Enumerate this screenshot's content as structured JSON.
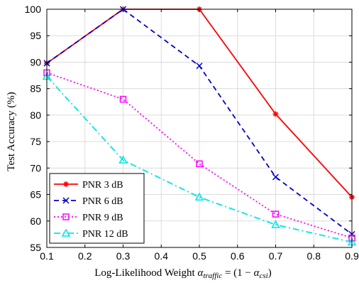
{
  "chart_data": {
    "type": "line",
    "xlabel_main": "Log-Likelihood Weight ",
    "xlabel_var": "α",
    "xlabel_sub1": "traffic",
    "xlabel_mid": " = (1 − ",
    "xlabel_var2": "α",
    "xlabel_sub2": "csi",
    "xlabel_end": ")",
    "ylabel": "Test Accuracy (%)",
    "xlim": [
      0.1,
      0.9
    ],
    "ylim": [
      55,
      100
    ],
    "xticks": [
      "0.1",
      "0.2",
      "0.3",
      "0.4",
      "0.5",
      "0.6",
      "0.7",
      "0.8",
      "0.9"
    ],
    "yticks": [
      "55",
      "60",
      "65",
      "70",
      "75",
      "80",
      "85",
      "90",
      "95",
      "100"
    ],
    "x": [
      0.1,
      0.3,
      0.5,
      0.7,
      0.9
    ],
    "legend_position": "bottom-left",
    "grid": true,
    "series": [
      {
        "name": "PNR 3 dB",
        "values": [
          89.8,
          100,
          100,
          80.2,
          64.5
        ],
        "color": "#ff0000",
        "dash": "",
        "marker": "star"
      },
      {
        "name": "PNR 6 dB",
        "values": [
          89.8,
          100,
          89.3,
          68.3,
          57.5
        ],
        "color": "#0000cc",
        "dash": "7,5",
        "marker": "x"
      },
      {
        "name": "PNR 9 dB",
        "values": [
          88.0,
          83.0,
          70.8,
          61.3,
          56.8
        ],
        "color": "#ff00ff",
        "dash": "2,3",
        "marker": "square"
      },
      {
        "name": "PNR 12 dB",
        "values": [
          87.3,
          71.5,
          64.5,
          59.3,
          56.0
        ],
        "color": "#00e5e5",
        "dash": "9,4,2,4",
        "marker": "triangle"
      }
    ]
  }
}
